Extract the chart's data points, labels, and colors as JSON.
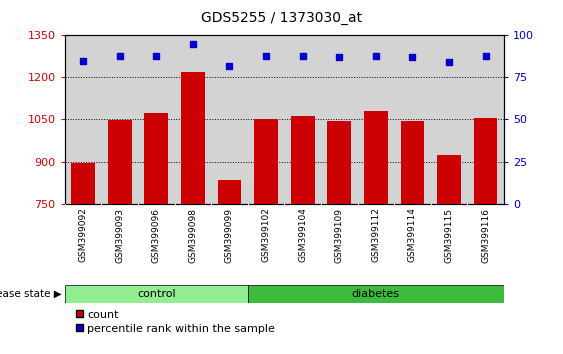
{
  "title": "GDS5255 / 1373030_at",
  "samples": [
    "GSM399092",
    "GSM399093",
    "GSM399096",
    "GSM399098",
    "GSM399099",
    "GSM399102",
    "GSM399104",
    "GSM399109",
    "GSM399112",
    "GSM399114",
    "GSM399115",
    "GSM399116"
  ],
  "counts": [
    893,
    1047,
    1072,
    1220,
    835,
    1052,
    1063,
    1043,
    1080,
    1045,
    922,
    1057
  ],
  "percentile_ranks": [
    85,
    88,
    88,
    95,
    82,
    88,
    88,
    87,
    88,
    87,
    84,
    88
  ],
  "groups": [
    "control",
    "control",
    "control",
    "control",
    "control",
    "diabetes",
    "diabetes",
    "diabetes",
    "diabetes",
    "diabetes",
    "diabetes",
    "diabetes"
  ],
  "ylim_left": [
    750,
    1350
  ],
  "ylim_right": [
    0,
    100
  ],
  "yticks_left": [
    750,
    900,
    1050,
    1200,
    1350
  ],
  "yticks_right": [
    0,
    25,
    50,
    75,
    100
  ],
  "bar_color": "#cc0000",
  "dot_color": "#0000cc",
  "control_color": "#90ee90",
  "diabetes_color": "#3dbb3d",
  "bg_color": "#d3d3d3",
  "legend_count_label": "count",
  "legend_pct_label": "percentile rank within the sample",
  "group_label": "disease state"
}
